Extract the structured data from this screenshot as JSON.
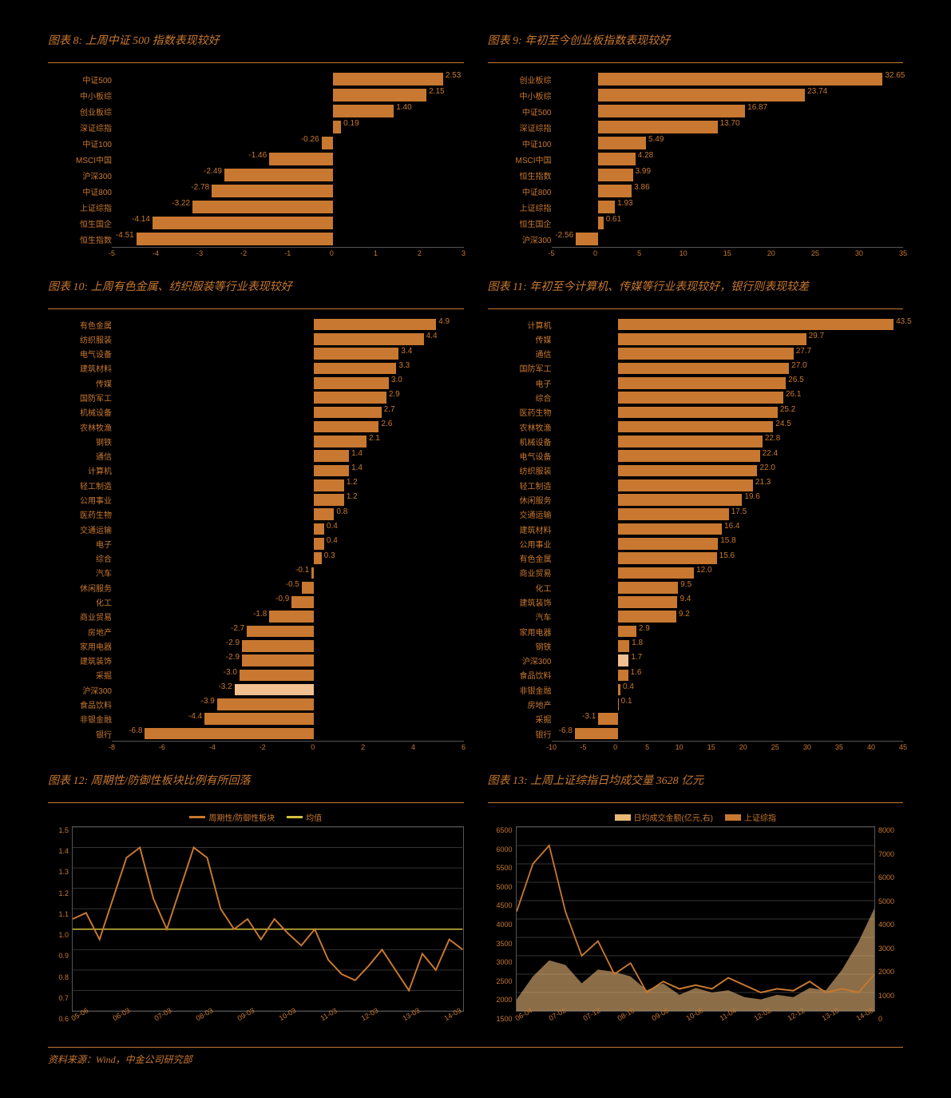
{
  "colors": {
    "bar": "#c87830",
    "bar_alt": "#f0c090",
    "grid": "#333333",
    "text": "#c87830",
    "line": "#c87830",
    "avg": "#d4c040",
    "area": "#e8b878"
  },
  "charts": {
    "c8": {
      "title": "图表 8: 上周中证 500 指数表现较好",
      "xmin": -5,
      "xmax": 3,
      "xticks": [
        -5,
        -4,
        -3,
        -2,
        -1,
        0,
        1,
        2,
        3
      ],
      "bars": [
        {
          "label": "中证500",
          "value": 2.53
        },
        {
          "label": "中小板综",
          "value": 2.15
        },
        {
          "label": "创业板综",
          "value": 1.4
        },
        {
          "label": "深证综指",
          "value": 0.19
        },
        {
          "label": "中证100",
          "value": -0.26
        },
        {
          "label": "MSCI中国",
          "value": -1.46
        },
        {
          "label": "沪深300",
          "value": -2.49
        },
        {
          "label": "中证800",
          "value": -2.78
        },
        {
          "label": "上证综指",
          "value": -3.22
        },
        {
          "label": "恒生国企",
          "value": -4.14
        },
        {
          "label": "恒生指数",
          "value": -4.51
        }
      ]
    },
    "c9": {
      "title": "图表 9: 年初至今创业板指数表现较好",
      "xmin": -5,
      "xmax": 35,
      "xticks": [
        -5,
        0,
        5,
        10,
        15,
        20,
        25,
        30,
        35
      ],
      "bars": [
        {
          "label": "创业板综",
          "value": 32.65
        },
        {
          "label": "中小板综",
          "value": 23.74
        },
        {
          "label": "中证500",
          "value": 16.87
        },
        {
          "label": "深证综指",
          "value": 13.7
        },
        {
          "label": "中证100",
          "value": 5.49
        },
        {
          "label": "MSCI中国",
          "value": 4.28
        },
        {
          "label": "恒生指数",
          "value": 3.99
        },
        {
          "label": "中证800",
          "value": 3.86
        },
        {
          "label": "上证综指",
          "value": 1.93
        },
        {
          "label": "恒生国企",
          "value": 0.61
        },
        {
          "label": "沪深300",
          "value": -2.56
        }
      ]
    },
    "c10": {
      "title": "图表 10: 上周有色金属、纺织服装等行业表现较好",
      "xmin": -8,
      "xmax": 6,
      "xticks": [
        -8,
        -6,
        -4,
        -2,
        0,
        2,
        4,
        6
      ],
      "bars": [
        {
          "label": "有色金属",
          "value": 4.9
        },
        {
          "label": "纺织服装",
          "value": 4.4
        },
        {
          "label": "电气设备",
          "value": 3.4
        },
        {
          "label": "建筑材料",
          "value": 3.3
        },
        {
          "label": "传媒",
          "value": 3.0
        },
        {
          "label": "国防军工",
          "value": 2.9
        },
        {
          "label": "机械设备",
          "value": 2.7
        },
        {
          "label": "农林牧渔",
          "value": 2.6
        },
        {
          "label": "钢铁",
          "value": 2.1
        },
        {
          "label": "通信",
          "value": 1.4
        },
        {
          "label": "计算机",
          "value": 1.4
        },
        {
          "label": "轻工制造",
          "value": 1.2
        },
        {
          "label": "公用事业",
          "value": 1.2
        },
        {
          "label": "医药生物",
          "value": 0.8
        },
        {
          "label": "交通运输",
          "value": 0.4
        },
        {
          "label": "电子",
          "value": 0.4
        },
        {
          "label": "综合",
          "value": 0.3
        },
        {
          "label": "汽车",
          "value": -0.1
        },
        {
          "label": "休闲服务",
          "value": -0.5
        },
        {
          "label": "化工",
          "value": -0.9
        },
        {
          "label": "商业贸易",
          "value": -1.8
        },
        {
          "label": "房地产",
          "value": -2.7
        },
        {
          "label": "家用电器",
          "value": -2.9
        },
        {
          "label": "建筑装饰",
          "value": -2.9
        },
        {
          "label": "采掘",
          "value": -3.0
        },
        {
          "label": "沪深300",
          "value": -3.2,
          "alt": true
        },
        {
          "label": "食品饮料",
          "value": -3.9
        },
        {
          "label": "非银金融",
          "value": -4.4
        },
        {
          "label": "银行",
          "value": -6.8
        }
      ]
    },
    "c11": {
      "title": "图表 11: 年初至今计算机、传媒等行业表现较好，银行则表现较差",
      "xmin": -10,
      "xmax": 45,
      "xticks": [
        -10,
        -5,
        0,
        5,
        10,
        15,
        20,
        25,
        30,
        35,
        40,
        45
      ],
      "bars": [
        {
          "label": "计算机",
          "value": 43.5
        },
        {
          "label": "传媒",
          "value": 29.7
        },
        {
          "label": "通信",
          "value": 27.7
        },
        {
          "label": "国防军工",
          "value": 27.0
        },
        {
          "label": "电子",
          "value": 26.5
        },
        {
          "label": "综合",
          "value": 26.1
        },
        {
          "label": "医药生物",
          "value": 25.2
        },
        {
          "label": "农林牧渔",
          "value": 24.5
        },
        {
          "label": "机械设备",
          "value": 22.8
        },
        {
          "label": "电气设备",
          "value": 22.4
        },
        {
          "label": "纺织服装",
          "value": 22.0
        },
        {
          "label": "轻工制造",
          "value": 21.3
        },
        {
          "label": "休闲服务",
          "value": 19.6
        },
        {
          "label": "交通运输",
          "value": 17.5
        },
        {
          "label": "建筑材料",
          "value": 16.4
        },
        {
          "label": "公用事业",
          "value": 15.8
        },
        {
          "label": "有色金属",
          "value": 15.6
        },
        {
          "label": "商业贸易",
          "value": 12.0
        },
        {
          "label": "化工",
          "value": 9.5
        },
        {
          "label": "建筑装饰",
          "value": 9.4
        },
        {
          "label": "汽车",
          "value": 9.2
        },
        {
          "label": "家用电器",
          "value": 2.9
        },
        {
          "label": "钢铁",
          "value": 1.8
        },
        {
          "label": "沪深300",
          "value": 1.7,
          "alt": true
        },
        {
          "label": "食品饮料",
          "value": 1.6
        },
        {
          "label": "非银金融",
          "value": 0.4
        },
        {
          "label": "房地产",
          "value": 0.1
        },
        {
          "label": "采掘",
          "value": -3.1
        },
        {
          "label": "银行",
          "value": -6.8
        }
      ]
    },
    "c12": {
      "title": "图表 12: 周期性/防御性板块比例有所回落",
      "legend": [
        {
          "label": "周期性/防御性板块",
          "color": "#c87830"
        },
        {
          "label": "均值",
          "color": "#d4c040"
        }
      ],
      "ymin": 0.6,
      "ymax": 1.5,
      "yticks": [
        0.6,
        0.7,
        0.8,
        0.9,
        1.0,
        1.1,
        1.2,
        1.3,
        1.4,
        1.5
      ],
      "dates": [
        "05-06",
        "06-03",
        "07-03",
        "08-03",
        "09-03",
        "10-03",
        "11-03",
        "12-03",
        "13-03",
        "14-03"
      ],
      "avg": 1.0,
      "series": [
        1.05,
        1.08,
        0.95,
        1.15,
        1.35,
        1.4,
        1.15,
        1.0,
        1.2,
        1.4,
        1.35,
        1.1,
        1.0,
        1.05,
        0.95,
        1.05,
        0.98,
        0.92,
        1.0,
        0.85,
        0.78,
        0.75,
        0.82,
        0.9,
        0.8,
        0.7,
        0.88,
        0.8,
        0.95,
        0.9
      ]
    },
    "c13": {
      "title": "图表 13: 上周上证综指日均成交量 3628 亿元",
      "legend": [
        {
          "label": "日均成交金额(亿元,右)",
          "color": "#e8b878"
        },
        {
          "label": "上证综指",
          "color": "#c87830"
        }
      ],
      "ylmin": 1500,
      "ylmax": 6500,
      "ylticks": [
        1500,
        2000,
        2500,
        3000,
        3500,
        4000,
        4500,
        5000,
        5500,
        6000,
        6500
      ],
      "yrmin": 0,
      "yrmax": 8000,
      "yrticks": [
        0,
        1000,
        2000,
        3000,
        4000,
        5000,
        6000,
        7000,
        8000
      ],
      "dates": [
        "06-04",
        "07-02",
        "07-12",
        "08-10",
        "09-08",
        "10-06",
        "11-04",
        "12-02",
        "12-12",
        "13-10",
        "14-08"
      ],
      "index": [
        4200,
        5500,
        6000,
        4200,
        3000,
        3400,
        2500,
        2800,
        2000,
        2300,
        2100,
        2200,
        2100,
        2400,
        2200,
        2000,
        2100,
        2050,
        2300,
        2000,
        2100,
        2000,
        2500
      ],
      "volume": [
        500,
        1500,
        2200,
        2000,
        1200,
        1800,
        1700,
        1500,
        900,
        1200,
        700,
        1000,
        800,
        900,
        600,
        500,
        700,
        600,
        1000,
        900,
        1800,
        3000,
        4500
      ]
    }
  },
  "footer": "资料来源：Wind，中金公司研究部"
}
